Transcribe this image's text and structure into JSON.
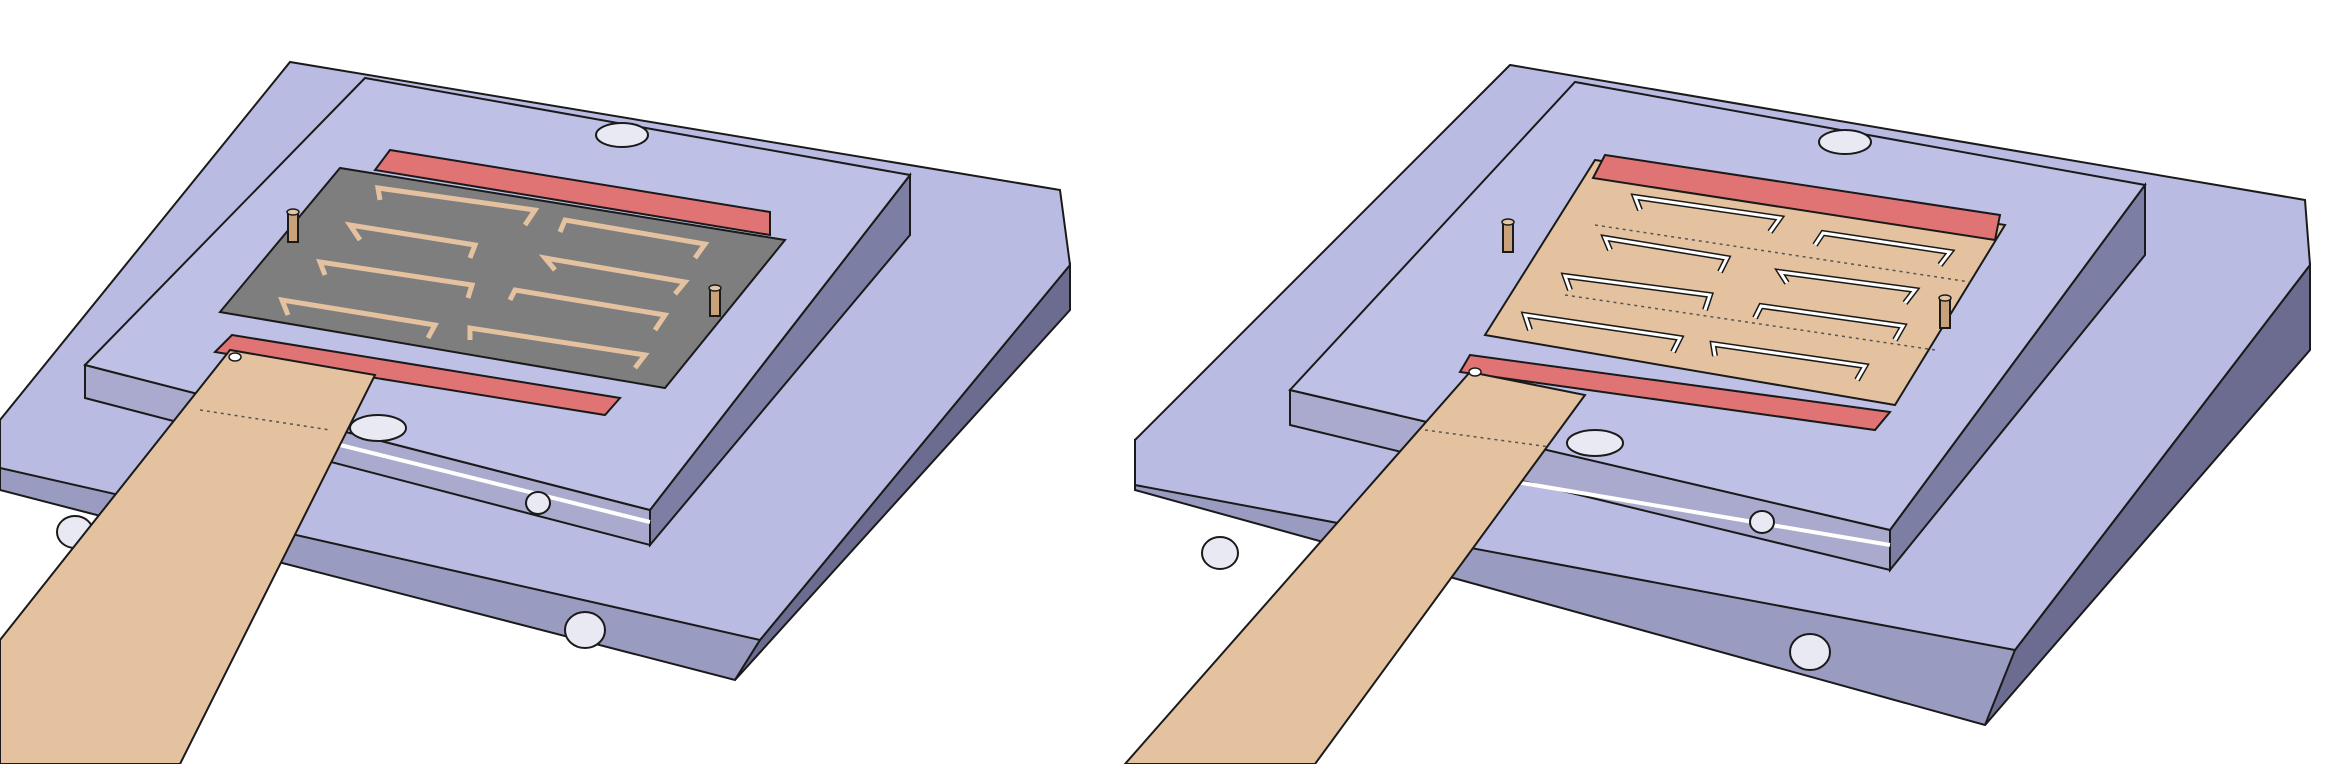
{
  "figure": {
    "panels": [
      {
        "id": "left",
        "overlay_state": "grey-sheet-with-cutouts",
        "strip_orientation": "left"
      },
      {
        "id": "right",
        "overlay_state": "laminated-tan-sheet-with-slots",
        "strip_orientation": "left"
      }
    ],
    "colors": {
      "fixture_top": "#babbe2",
      "fixture_side": "#8c8db3",
      "fixture_side_dark": "#6b6c8f",
      "strip": "#e5c29f",
      "red_bar": "#e07474",
      "grey_sheet": "#7a7a78",
      "pin": "#c9a27a",
      "outline": "#1a1a1a"
    }
  }
}
